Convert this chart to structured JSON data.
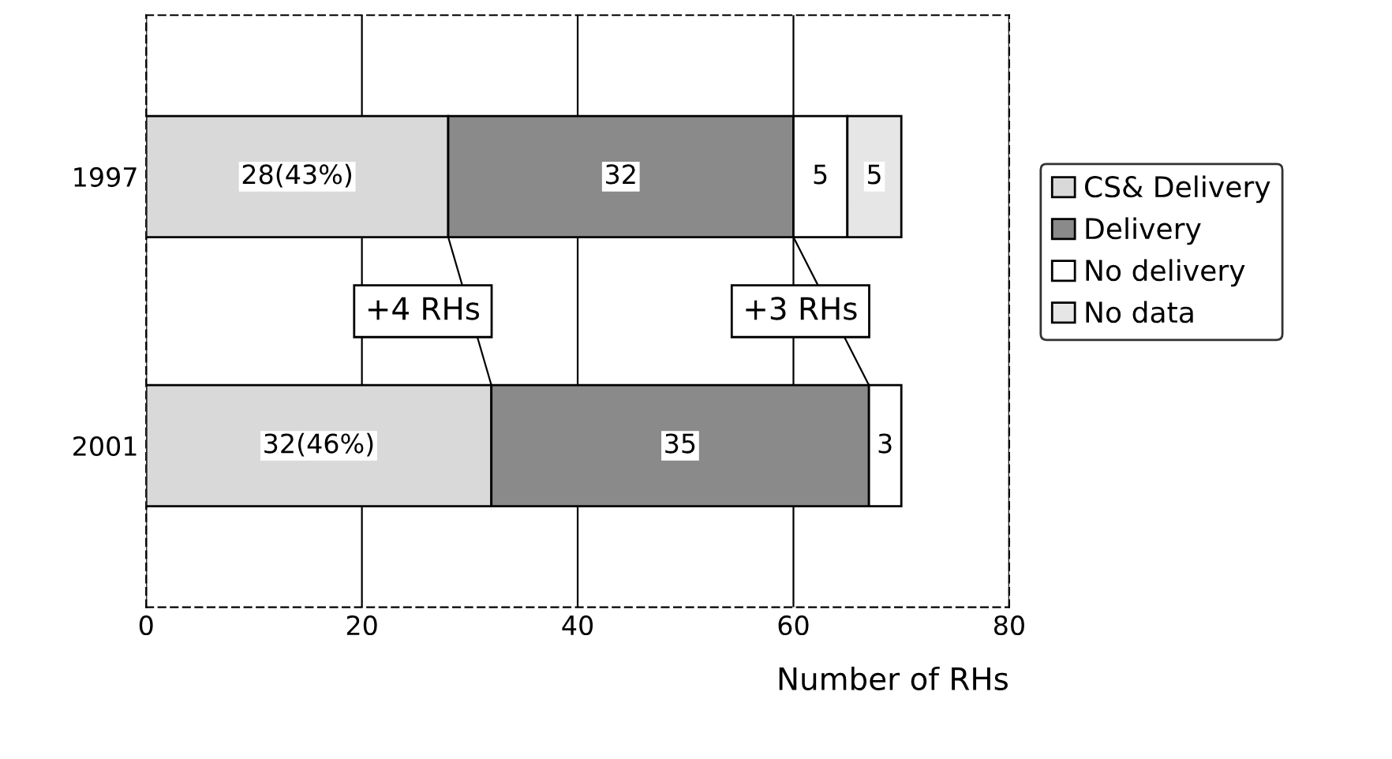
{
  "chart_data": {
    "type": "bar",
    "orientation": "horizontal",
    "stacked": true,
    "categories": [
      "1997",
      "2001"
    ],
    "series": [
      {
        "name": "CS& Delivery",
        "color": "#d9d9d9",
        "values": [
          28,
          32
        ],
        "value_labels": [
          "28(43%)",
          "32(46%)"
        ]
      },
      {
        "name": "Delivery",
        "color": "#8a8a8a",
        "values": [
          32,
          35
        ],
        "value_labels": [
          "32",
          "35"
        ]
      },
      {
        "name": "No delivery",
        "color": "#ffffff",
        "values": [
          5,
          3
        ],
        "value_labels": [
          "5",
          "3"
        ]
      },
      {
        "name": "No data",
        "color": "#e6e6e6",
        "values": [
          5,
          null
        ],
        "value_labels": [
          "5",
          null
        ]
      }
    ],
    "xlabel": "Number of RHs",
    "xlim": [
      0,
      80
    ],
    "xticks": [
      0,
      20,
      40,
      60,
      80
    ],
    "grid": "x",
    "legend": "right",
    "annotations": [
      "+4 RHs",
      "+3 RHs"
    ]
  }
}
